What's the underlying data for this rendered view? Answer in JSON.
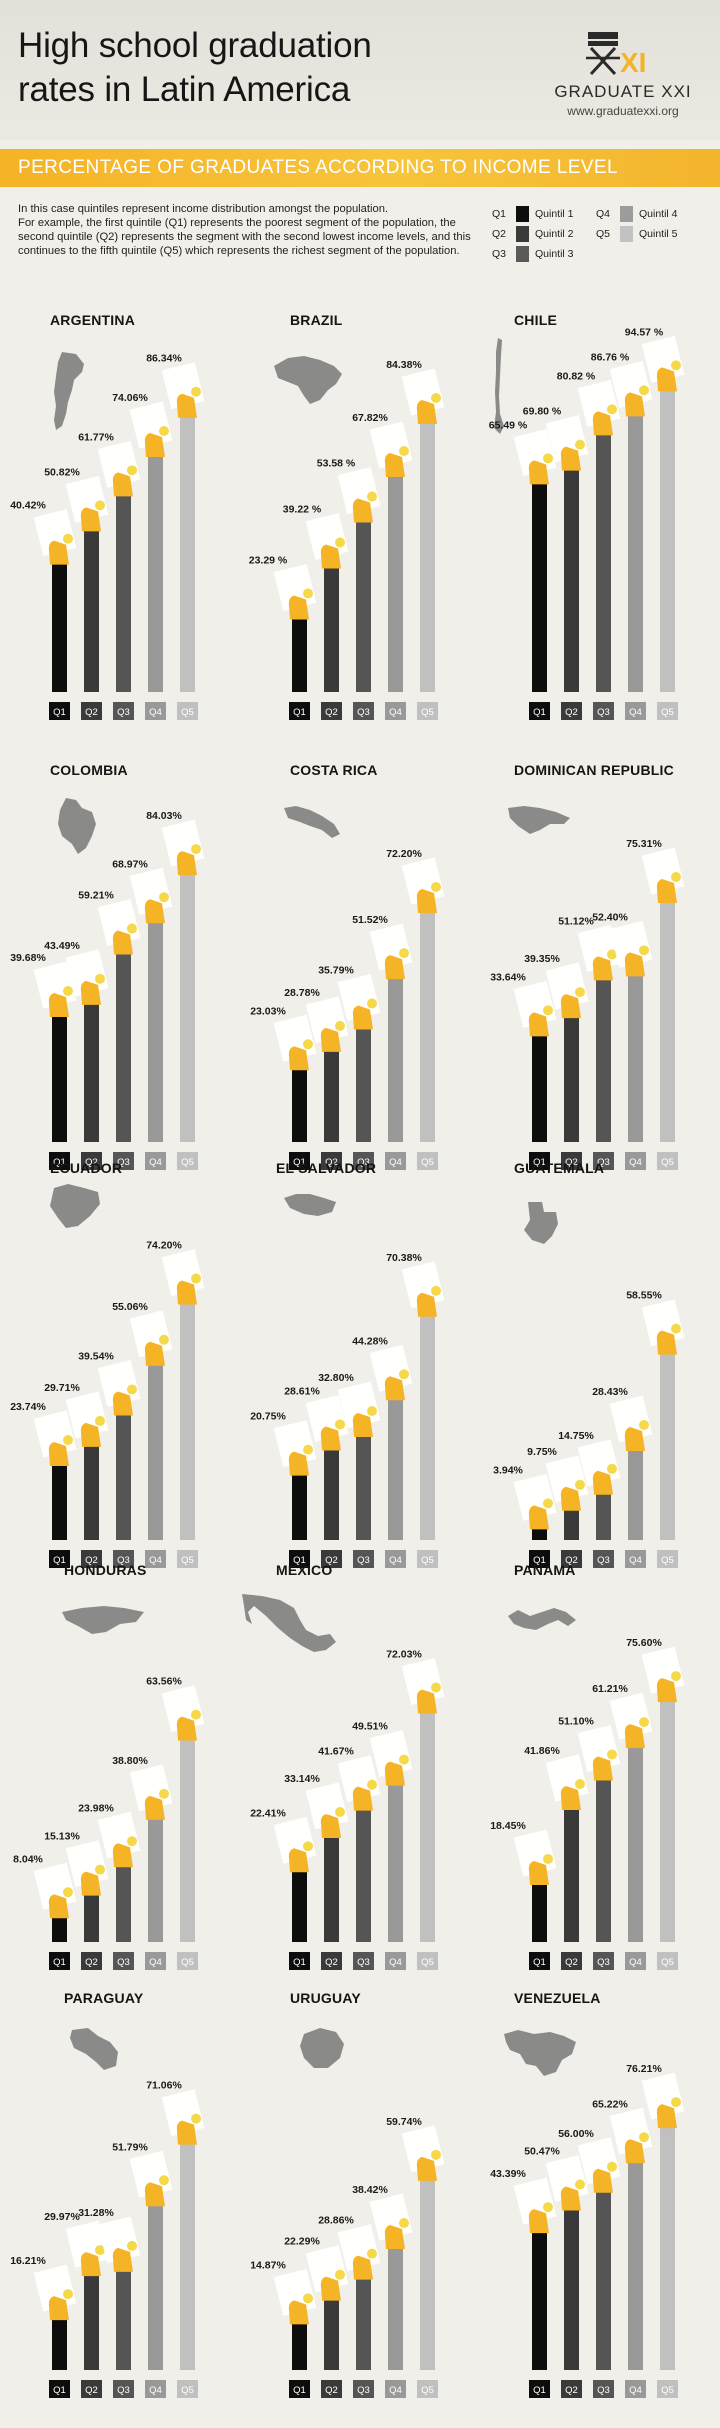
{
  "header": {
    "title_line1": "High school graduation",
    "title_line2": "rates in Latin America",
    "logo_name": "GRADUATE XXI",
    "logo_url": "www.graduatexxi.org"
  },
  "banner": {
    "text": "PERCENTAGE OF GRADUATES ACCORDING TO INCOME LEVEL"
  },
  "intro": {
    "paragraph1": "In this case quintiles represent income distribution amongst the population.",
    "paragraph2": "For example, the first quintile (Q1) represents the poorest segment of the population, the second quintile (Q2) represents the segment with the second lowest income levels, and this continues to the fifth quintile (Q5) which represents the richest segment of the population."
  },
  "legend": [
    {
      "code": "Q1",
      "name": "Quintil 1",
      "color": "#0d0d0d"
    },
    {
      "code": "Q2",
      "name": "Quintil 2",
      "color": "#3a3a3a"
    },
    {
      "code": "Q3",
      "name": "Quintil 3",
      "color": "#5a5a5a"
    },
    {
      "code": "Q4",
      "name": "Quintil 4",
      "color": "#9c9c9c"
    },
    {
      "code": "Q5",
      "name": "Quintil 5",
      "color": "#c2c2c2"
    }
  ],
  "colors": {
    "bar_colors": [
      "#0d0d0d",
      "#3a3a3a",
      "#555555",
      "#999999",
      "#c0c0c0"
    ],
    "accent": "#f5b326",
    "map": "#8a8a88",
    "background": "#f1efe9"
  },
  "chart_data": [
    {
      "type": "bar",
      "title": "ARGENTINA",
      "categories": [
        "Q1",
        "Q2",
        "Q3",
        "Q4",
        "Q5"
      ],
      "values": [
        40.42,
        50.82,
        61.77,
        74.06,
        86.34
      ],
      "labels": [
        "40.42%",
        "50.82%",
        "61.77%",
        "74.06%",
        "86.34%"
      ],
      "ylim": [
        0,
        100
      ]
    },
    {
      "type": "bar",
      "title": "BRAZIL",
      "categories": [
        "Q1",
        "Q2",
        "Q3",
        "Q4",
        "Q5"
      ],
      "values": [
        23.29,
        39.22,
        53.58,
        67.82,
        84.38
      ],
      "labels": [
        "23.29 %",
        "39.22 %",
        "53.58 %",
        "67.82%",
        "84.38%"
      ],
      "ylim": [
        0,
        100
      ]
    },
    {
      "type": "bar",
      "title": "CHILE",
      "categories": [
        "Q1",
        "Q2",
        "Q3",
        "Q4",
        "Q5"
      ],
      "values": [
        65.49,
        69.8,
        80.82,
        86.76,
        94.57
      ],
      "labels": [
        "65.49 %",
        "69.80 %",
        "80.82 %",
        "86.76 %",
        "94.57 %"
      ],
      "ylim": [
        0,
        100
      ]
    },
    {
      "type": "bar",
      "title": "COLOMBIA",
      "categories": [
        "Q1",
        "Q2",
        "Q3",
        "Q4",
        "Q5"
      ],
      "values": [
        39.68,
        43.49,
        59.21,
        68.97,
        84.03
      ],
      "labels": [
        "39.68%",
        "43.49%",
        "59.21%",
        "68.97%",
        "84.03%"
      ],
      "ylim": [
        0,
        100
      ]
    },
    {
      "type": "bar",
      "title": "COSTA RICA",
      "categories": [
        "Q1",
        "Q2",
        "Q3",
        "Q4",
        "Q5"
      ],
      "values": [
        23.03,
        28.78,
        35.79,
        51.52,
        72.2
      ],
      "labels": [
        "23.03%",
        "28.78%",
        "35.79%",
        "51.52%",
        "72.20%"
      ],
      "ylim": [
        0,
        100
      ]
    },
    {
      "type": "bar",
      "title": "DOMINICAN REPUBLIC",
      "categories": [
        "Q1",
        "Q2",
        "Q3",
        "Q4",
        "Q5"
      ],
      "values": [
        33.64,
        39.35,
        51.12,
        52.4,
        75.31
      ],
      "labels": [
        "33.64%",
        "39.35%",
        "51.12%",
        "52.40%",
        "75.31%"
      ],
      "ylim": [
        0,
        100
      ]
    },
    {
      "type": "bar",
      "title": "ECUADOR",
      "categories": [
        "Q1",
        "Q2",
        "Q3",
        "Q4",
        "Q5"
      ],
      "values": [
        23.74,
        29.71,
        39.54,
        55.06,
        74.2
      ],
      "labels": [
        "23.74%",
        "29.71%",
        "39.54%",
        "55.06%",
        "74.20%"
      ],
      "ylim": [
        0,
        100
      ]
    },
    {
      "type": "bar",
      "title": "EL SALVADOR",
      "categories": [
        "Q1",
        "Q2",
        "Q3",
        "Q4",
        "Q5"
      ],
      "values": [
        20.75,
        28.61,
        32.8,
        44.28,
        70.38
      ],
      "labels": [
        "20.75%",
        "28.61%",
        "32.80%",
        "44.28%",
        "70.38%"
      ],
      "ylim": [
        0,
        100
      ]
    },
    {
      "type": "bar",
      "title": "GUATEMALA",
      "categories": [
        "Q1",
        "Q2",
        "Q3",
        "Q4",
        "Q5"
      ],
      "values": [
        3.94,
        9.75,
        14.75,
        28.43,
        58.55
      ],
      "labels": [
        "3.94%",
        "9.75%",
        "14.75%",
        "28.43%",
        "58.55%"
      ],
      "ylim": [
        0,
        100
      ]
    },
    {
      "type": "bar",
      "title": "HONDURAS",
      "categories": [
        "Q1",
        "Q2",
        "Q3",
        "Q4",
        "Q5"
      ],
      "values": [
        8.04,
        15.13,
        23.98,
        38.8,
        63.56
      ],
      "labels": [
        "8.04%",
        "15.13%",
        "23.98%",
        "38.80%",
        "63.56%"
      ],
      "ylim": [
        0,
        100
      ]
    },
    {
      "type": "bar",
      "title": "MEXICO",
      "categories": [
        "Q1",
        "Q2",
        "Q3",
        "Q4",
        "Q5"
      ],
      "values": [
        22.41,
        33.14,
        41.67,
        49.51,
        72.03
      ],
      "labels": [
        "22.41%",
        "33.14%",
        "41.67%",
        "49.51%",
        "72.03%"
      ],
      "ylim": [
        0,
        100
      ]
    },
    {
      "type": "bar",
      "title": "PANAMA",
      "categories": [
        "Q1",
        "Q2",
        "Q3",
        "Q4",
        "Q5"
      ],
      "values": [
        18.45,
        41.86,
        51.1,
        61.21,
        75.6
      ],
      "labels": [
        "18.45%",
        "41.86%",
        "51.10%",
        "61.21%",
        "75.60%"
      ],
      "ylim": [
        0,
        100
      ]
    },
    {
      "type": "bar",
      "title": "PARAGUAY",
      "categories": [
        "Q1",
        "Q2",
        "Q3",
        "Q4",
        "Q5"
      ],
      "values": [
        16.21,
        29.97,
        31.28,
        51.79,
        71.06
      ],
      "labels": [
        "16.21%",
        "29.97%",
        "31.28%",
        "51.79%",
        "71.06%"
      ],
      "ylim": [
        0,
        100
      ]
    },
    {
      "type": "bar",
      "title": "URUGUAY",
      "categories": [
        "Q1",
        "Q2",
        "Q3",
        "Q4",
        "Q5"
      ],
      "values": [
        14.87,
        22.29,
        28.86,
        38.42,
        59.74
      ],
      "labels": [
        "14.87%",
        "22.29%",
        "28.86%",
        "38.42%",
        "59.74%"
      ],
      "ylim": [
        0,
        100
      ]
    },
    {
      "type": "bar",
      "title": "VENEZUELA",
      "categories": [
        "Q1",
        "Q2",
        "Q3",
        "Q4",
        "Q5"
      ],
      "values": [
        43.39,
        50.47,
        56.0,
        65.22,
        76.21
      ],
      "labels": [
        "43.39%",
        "50.47%",
        "56.00%",
        "65.22%",
        "76.21%"
      ],
      "ylim": [
        0,
        100
      ]
    }
  ]
}
